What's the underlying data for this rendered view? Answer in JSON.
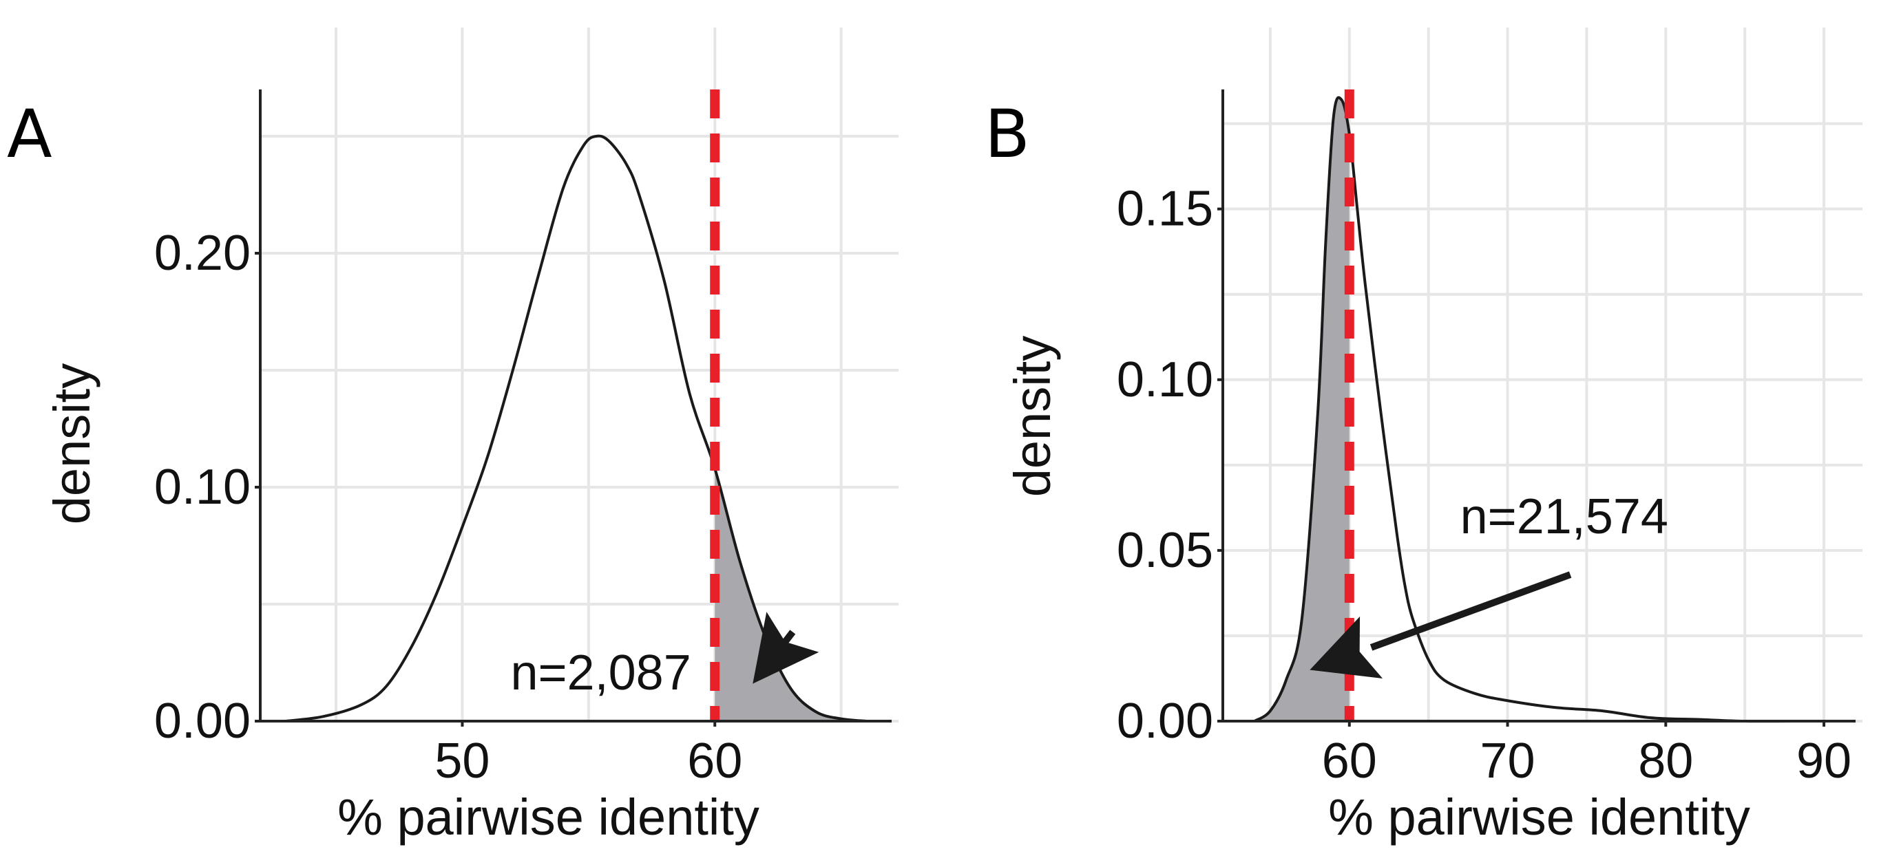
{
  "chart_data": [
    {
      "panel": "A",
      "type": "area",
      "xlabel": "% pairwise identity",
      "ylabel": "density",
      "xlim": [
        42,
        67
      ],
      "ylim": [
        0,
        0.27
      ],
      "xticks": [
        50,
        60
      ],
      "yticks": [
        0.0,
        0.1,
        0.2
      ],
      "ytick_labels": [
        "0.00",
        "0.10",
        "0.20"
      ],
      "xtick_labels": [
        "50",
        "60"
      ],
      "grid": true,
      "threshold": 60,
      "shade": "right",
      "series": [
        {
          "name": "density",
          "x": [
            43,
            44.5,
            46,
            47,
            48,
            49,
            50,
            51,
            52,
            53,
            54,
            54.8,
            55.3,
            55.8,
            56.5,
            57,
            58,
            59,
            60,
            61,
            62,
            63,
            64,
            65,
            66
          ],
          "y": [
            0.0,
            0.002,
            0.007,
            0.015,
            0.032,
            0.055,
            0.083,
            0.113,
            0.15,
            0.19,
            0.228,
            0.246,
            0.25,
            0.248,
            0.238,
            0.225,
            0.188,
            0.14,
            0.108,
            0.068,
            0.036,
            0.014,
            0.004,
            0.001,
            0.0
          ]
        }
      ],
      "annotation": {
        "text": "n=2,087",
        "x": 53.0,
        "y": 0.02,
        "arrow_to": [
          61.5,
          0.016
        ]
      }
    },
    {
      "panel": "B",
      "type": "area",
      "xlabel": "% pairwise identity",
      "ylabel": "density",
      "xlim": [
        52,
        92
      ],
      "ylim": [
        0,
        0.185
      ],
      "xticks": [
        60,
        70,
        80,
        90
      ],
      "yticks": [
        0.0,
        0.05,
        0.1,
        0.15
      ],
      "ytick_labels": [
        "0.00",
        "0.05",
        "0.10",
        "0.15"
      ],
      "xtick_labels": [
        "60",
        "70",
        "80",
        "90"
      ],
      "grid": true,
      "threshold": 60,
      "shade": "left",
      "series": [
        {
          "name": "density",
          "x": [
            54,
            55,
            56,
            57,
            58,
            58.5,
            59,
            59.5,
            60,
            60.5,
            61,
            62,
            63,
            63.5,
            64,
            65,
            66,
            68,
            70,
            73,
            76,
            79,
            82,
            85,
            88,
            91
          ],
          "y": [
            0.0,
            0.003,
            0.012,
            0.03,
            0.09,
            0.14,
            0.177,
            0.182,
            0.172,
            0.15,
            0.128,
            0.09,
            0.055,
            0.04,
            0.03,
            0.018,
            0.012,
            0.008,
            0.006,
            0.004,
            0.003,
            0.001,
            0.0005,
            0.0,
            0.0,
            0.0
          ]
        }
      ],
      "annotation": {
        "text": "n=21,574",
        "x": 67,
        "y": 0.055,
        "arrow_to": [
          57.5,
          0.015
        ]
      }
    }
  ]
}
